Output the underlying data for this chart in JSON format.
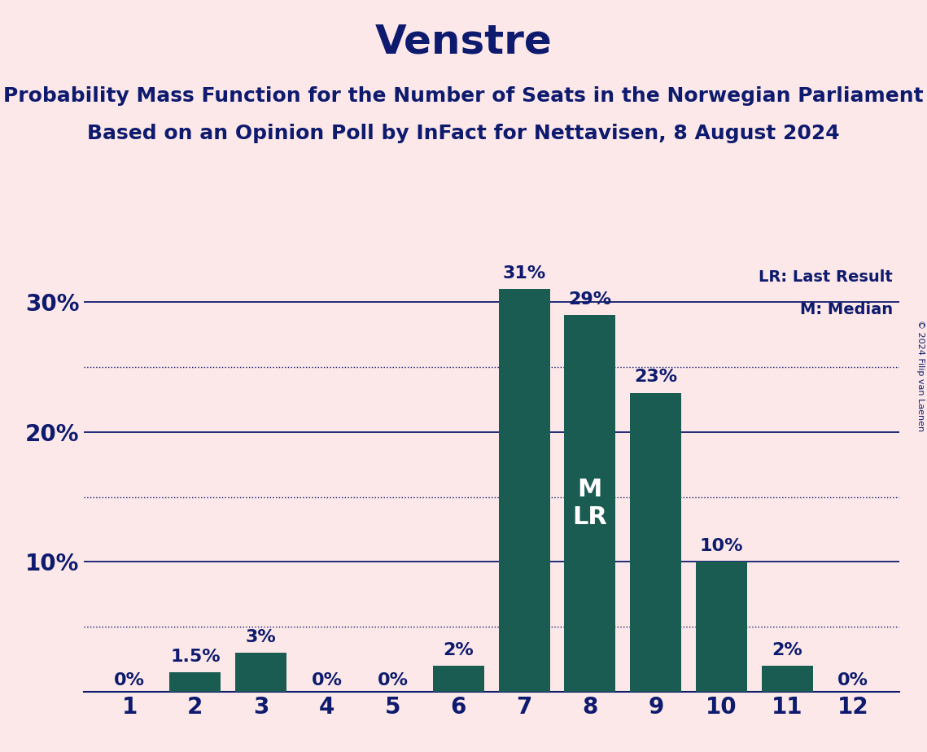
{
  "title": "Venstre",
  "subtitle_line1": "Probability Mass Function for the Number of Seats in the Norwegian Parliament",
  "subtitle_line2": "Based on an Opinion Poll by InFact for Nettavisen, 8 August 2024",
  "copyright": "© 2024 Filip van Laenen",
  "seats": [
    1,
    2,
    3,
    4,
    5,
    6,
    7,
    8,
    9,
    10,
    11,
    12
  ],
  "probabilities": [
    0.0,
    1.5,
    3.0,
    0.0,
    0.0,
    2.0,
    31.0,
    29.0,
    23.0,
    10.0,
    2.0,
    0.0
  ],
  "bar_labels": [
    "0%",
    "1.5%",
    "3%",
    "0%",
    "0%",
    "2%",
    "31%",
    "29%",
    "23%",
    "10%",
    "2%",
    "0%"
  ],
  "bar_color": "#1a5c52",
  "background_color": "#fce8e8",
  "text_color": "#0d1a6e",
  "ylim": [
    0,
    33
  ],
  "yticks": [
    0,
    10,
    20,
    30
  ],
  "ytick_labels": [
    "",
    "10%",
    "20%",
    "30%"
  ],
  "solid_gridlines": [
    10,
    20,
    30
  ],
  "dotted_gridlines": [
    5,
    15,
    25
  ],
  "median_seat": 8,
  "lr_seat": 8,
  "legend_lr": "LR: Last Result",
  "legend_m": "M: Median",
  "title_fontsize": 36,
  "subtitle_fontsize": 18,
  "bar_label_fontsize": 16,
  "axis_label_fontsize": 20,
  "annotation_fontsize": 16,
  "bar_width": 0.78
}
